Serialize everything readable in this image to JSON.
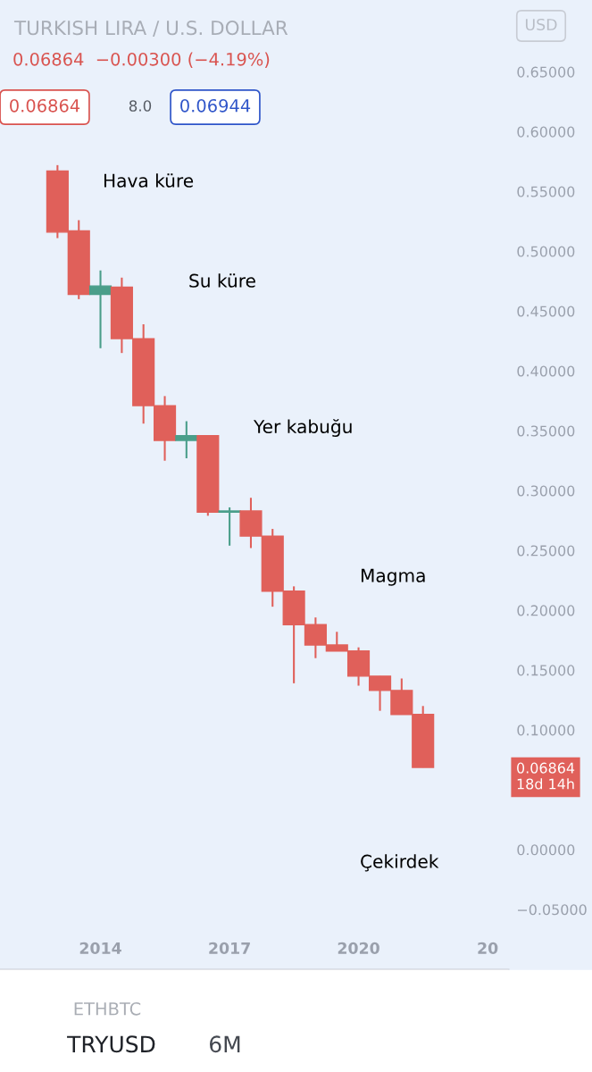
{
  "chart_data": {
    "type": "candlestick",
    "title": "TURKISH LIRA / U.S. DOLLAR",
    "subtitle": "0.06864  −0.00300 (−4.19%)",
    "x": [
      "2013-01",
      "2013-07",
      "2014-01",
      "2014-07",
      "2015-01",
      "2015-07",
      "2016-01",
      "2016-07",
      "2017-01",
      "2017-07",
      "2018-01",
      "2018-07",
      "2019-01",
      "2019-07",
      "2020-01",
      "2020-07",
      "2021-01",
      "2021-07"
    ],
    "ohlc": [
      [
        0.567,
        0.572,
        0.511,
        0.516
      ],
      [
        0.517,
        0.526,
        0.46,
        0.464
      ],
      [
        0.464,
        0.484,
        0.419,
        0.471
      ],
      [
        0.47,
        0.478,
        0.415,
        0.427
      ],
      [
        0.427,
        0.439,
        0.356,
        0.371
      ],
      [
        0.371,
        0.379,
        0.325,
        0.342
      ],
      [
        0.342,
        0.358,
        0.327,
        0.346
      ],
      [
        0.346,
        0.346,
        0.279,
        0.282
      ],
      [
        0.282,
        0.286,
        0.254,
        0.283
      ],
      [
        0.283,
        0.294,
        0.252,
        0.262
      ],
      [
        0.262,
        0.268,
        0.203,
        0.216
      ],
      [
        0.216,
        0.22,
        0.139,
        0.188
      ],
      [
        0.188,
        0.194,
        0.16,
        0.171
      ],
      [
        0.171,
        0.182,
        0.166,
        0.166
      ],
      [
        0.166,
        0.169,
        0.137,
        0.145
      ],
      [
        0.145,
        0.145,
        0.116,
        0.133
      ],
      [
        0.133,
        0.143,
        0.113,
        0.113
      ],
      [
        0.113,
        0.12,
        0.06864,
        0.06864
      ]
    ],
    "colors": [
      "#e0605a",
      "#e0605a",
      "#4a9e8a",
      "#e0605a",
      "#e0605a",
      "#e0605a",
      "#4a9e8a",
      "#e0605a",
      "#4a9e8a",
      "#e0605a",
      "#e0605a",
      "#e0605a",
      "#e0605a",
      "#e0605a",
      "#e0605a",
      "#e0605a",
      "#e0605a",
      "#e0605a"
    ],
    "ylim": [
      -0.1,
      0.71
    ],
    "yticks": [
      {
        "value": 0.65,
        "label": "0.65000"
      },
      {
        "value": 0.6,
        "label": "0.60000"
      },
      {
        "value": 0.55,
        "label": "0.55000"
      },
      {
        "value": 0.5,
        "label": "0.50000"
      },
      {
        "value": 0.45,
        "label": "0.45000"
      },
      {
        "value": 0.4,
        "label": "0.40000"
      },
      {
        "value": 0.35,
        "label": "0.35000"
      },
      {
        "value": 0.3,
        "label": "0.30000"
      },
      {
        "value": 0.25,
        "label": "0.25000"
      },
      {
        "value": 0.2,
        "label": "0.20000"
      },
      {
        "value": 0.15,
        "label": "0.15000"
      },
      {
        "value": 0.1,
        "label": "0.10000"
      },
      {
        "value": 0,
        "label": "0.00000"
      },
      {
        "value": -0.05,
        "label": "−0.05000"
      }
    ],
    "xlim": [
      "2011-09",
      "2023-07"
    ],
    "xticks": [
      {
        "value": "2014-01",
        "label": "2014"
      },
      {
        "value": "2017-01",
        "label": "2017"
      },
      {
        "value": "2020-01",
        "label": "2020"
      },
      {
        "value": "2023-01",
        "label": "20"
      }
    ],
    "grid": false,
    "annotations": [
      "Hava küre",
      "Su küre",
      "Yer kabuğu",
      "Magma",
      "Çekirdek",
      "0.06864\n18d 14h",
      "0.06864",
      "8.0",
      "0.06944",
      "USD",
      "ETHBTC",
      "TRYUSD",
      "6M"
    ]
  }
}
